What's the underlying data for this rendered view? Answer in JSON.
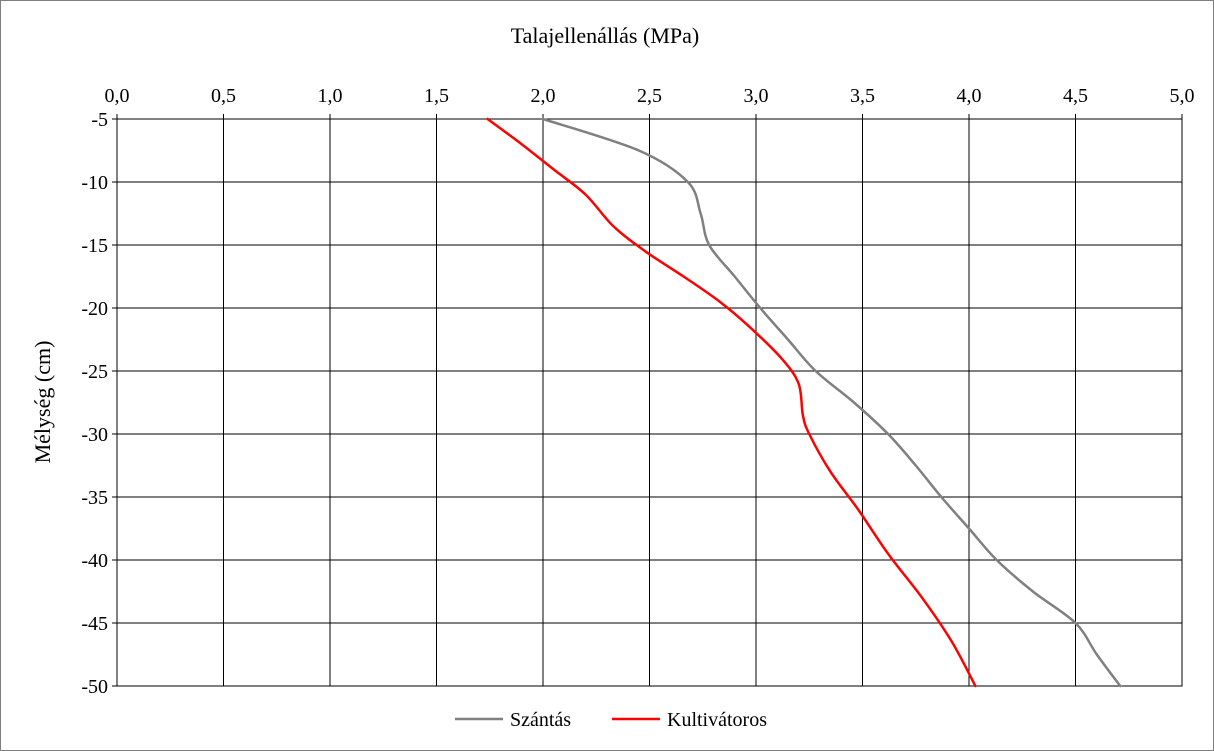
{
  "chart_data": {
    "type": "line",
    "title": "Talajellenállás (MPa)",
    "xlabel": "Talajellenállás (MPa)",
    "ylabel": "Mélység (cm)",
    "x_axis_position": "top",
    "xlim": [
      0,
      5
    ],
    "ylim": [
      -50,
      -5
    ],
    "x_ticks": [
      "0,0",
      "0,5",
      "1,0",
      "1,5",
      "2,0",
      "2,5",
      "3,0",
      "3,5",
      "4,0",
      "4,5",
      "5,0"
    ],
    "y_ticks": [
      "-5",
      "-10",
      "-15",
      "-20",
      "-25",
      "-30",
      "-35",
      "-40",
      "-45",
      "-50"
    ],
    "grid": true,
    "legend_position": "bottom",
    "series": [
      {
        "name": "Szántás",
        "color": "#808080",
        "points": [
          {
            "x": 2.0,
            "y": -5
          },
          {
            "x": 2.45,
            "y": -7.5
          },
          {
            "x": 2.68,
            "y": -10
          },
          {
            "x": 2.74,
            "y": -12.5
          },
          {
            "x": 2.78,
            "y": -15
          },
          {
            "x": 2.9,
            "y": -17.5
          },
          {
            "x": 3.02,
            "y": -20
          },
          {
            "x": 3.15,
            "y": -22.5
          },
          {
            "x": 3.28,
            "y": -25
          },
          {
            "x": 3.46,
            "y": -27.5
          },
          {
            "x": 3.62,
            "y": -30
          },
          {
            "x": 3.75,
            "y": -32.5
          },
          {
            "x": 3.87,
            "y": -35
          },
          {
            "x": 4.0,
            "y": -37.5
          },
          {
            "x": 4.13,
            "y": -40
          },
          {
            "x": 4.3,
            "y": -42.5
          },
          {
            "x": 4.5,
            "y": -45
          },
          {
            "x": 4.6,
            "y": -47.5
          },
          {
            "x": 4.71,
            "y": -50
          }
        ]
      },
      {
        "name": "Kultivátoros",
        "color": "#ff0000",
        "points": [
          {
            "x": 1.74,
            "y": -5
          },
          {
            "x": 1.9,
            "y": -7
          },
          {
            "x": 2.05,
            "y": -9
          },
          {
            "x": 2.2,
            "y": -11
          },
          {
            "x": 2.33,
            "y": -13.5
          },
          {
            "x": 2.48,
            "y": -15.5
          },
          {
            "x": 2.66,
            "y": -17.5
          },
          {
            "x": 2.83,
            "y": -19.5
          },
          {
            "x": 2.97,
            "y": -21.5
          },
          {
            "x": 3.12,
            "y": -24
          },
          {
            "x": 3.2,
            "y": -26
          },
          {
            "x": 3.22,
            "y": -28.5
          },
          {
            "x": 3.25,
            "y": -30
          },
          {
            "x": 3.35,
            "y": -33
          },
          {
            "x": 3.48,
            "y": -36
          },
          {
            "x": 3.62,
            "y": -39.5
          },
          {
            "x": 3.78,
            "y": -43
          },
          {
            "x": 3.92,
            "y": -46.5
          },
          {
            "x": 4.03,
            "y": -50
          }
        ]
      }
    ]
  }
}
